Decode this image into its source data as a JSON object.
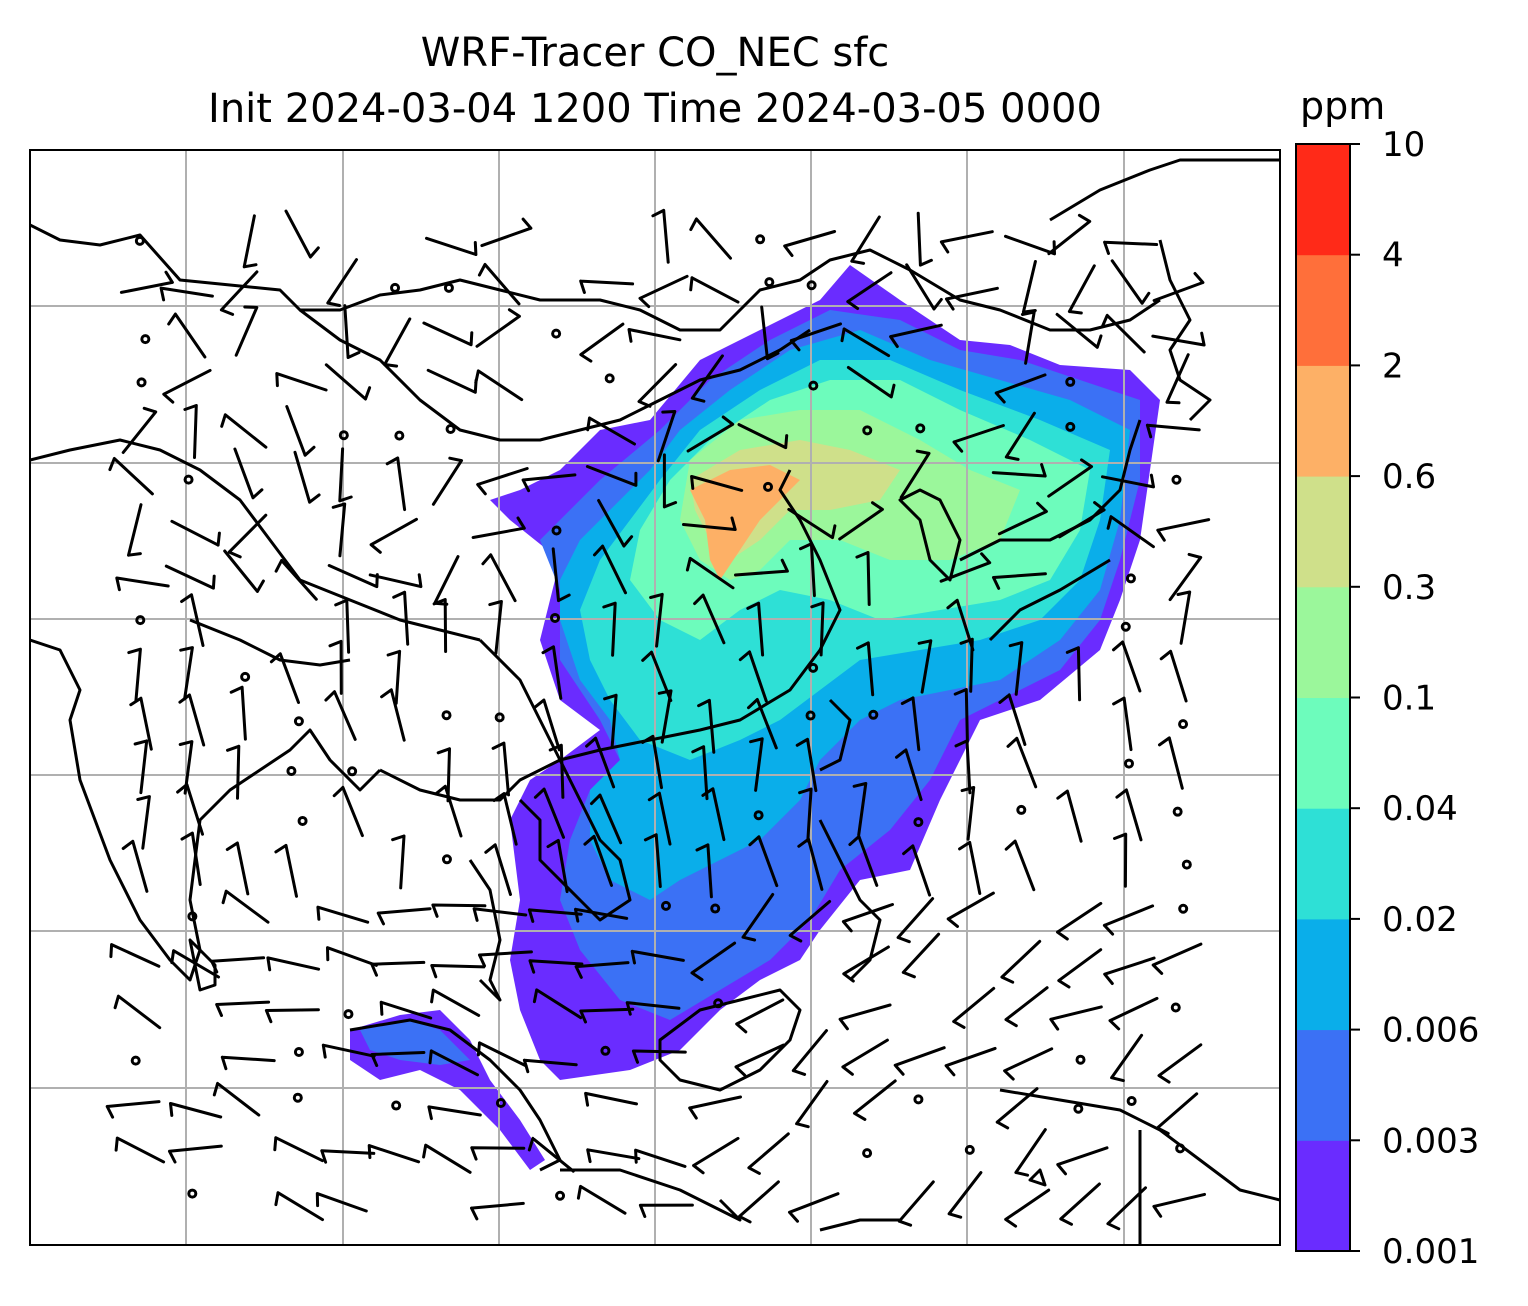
{
  "title": {
    "line1": "WRF-Tracer CO_NEC sfc",
    "line2": "Init 2024-03-04 1200 Time 2024-03-05 0000"
  },
  "colorbar": {
    "unit": "ppm",
    "levels": [
      "0.001",
      "0.003",
      "0.006",
      "0.02",
      "0.04",
      "0.1",
      "0.3",
      "0.6",
      "2",
      "4",
      "10"
    ],
    "colors": [
      "#6a2cff",
      "#3b71f5",
      "#0aaeea",
      "#2ee0d6",
      "#6dfcbc",
      "#9bf79b",
      "#cfe08a",
      "#fdb066",
      "#ff6f3a",
      "#ff2a18"
    ]
  },
  "map": {
    "gridlines": true,
    "variable": "CO_NEC surface concentration",
    "wind": "barbs"
  }
}
